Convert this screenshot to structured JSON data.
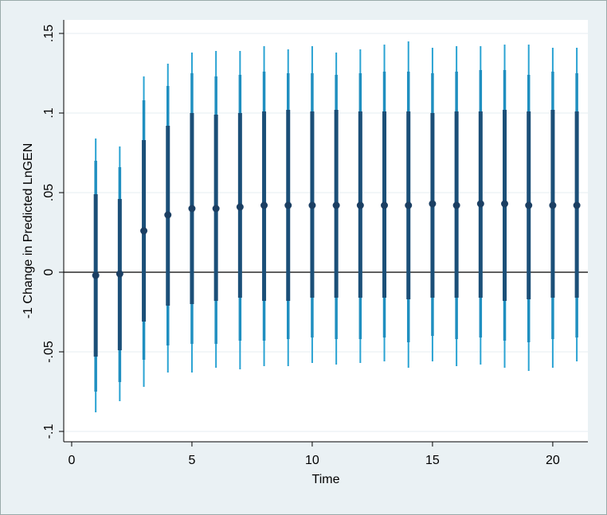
{
  "chart_data": {
    "type": "errorbar",
    "xlabel": "Time",
    "ylabel": "-1 Change in Predicted LnGEN",
    "x": [
      1,
      2,
      3,
      4,
      5,
      6,
      7,
      8,
      9,
      10,
      11,
      12,
      13,
      14,
      15,
      16,
      17,
      18,
      19,
      20,
      21
    ],
    "values": [
      -0.002,
      -0.001,
      0.026,
      0.036,
      0.04,
      0.04,
      0.041,
      0.042,
      0.042,
      0.042,
      0.042,
      0.042,
      0.042,
      0.042,
      0.043,
      0.042,
      0.043,
      0.043,
      0.042,
      0.042,
      0.042
    ],
    "color": "#1b3f63",
    "intervals": [
      {
        "color": "#2aa3d3",
        "lower": [
          -0.088,
          -0.081,
          -0.072,
          -0.063,
          -0.063,
          -0.06,
          -0.061,
          -0.059,
          -0.059,
          -0.057,
          -0.058,
          -0.057,
          -0.056,
          -0.06,
          -0.056,
          -0.059,
          -0.058,
          -0.06,
          -0.062,
          -0.06,
          -0.056
        ],
        "upper": [
          0.084,
          0.079,
          0.123,
          0.131,
          0.138,
          0.139,
          0.139,
          0.142,
          0.14,
          0.142,
          0.138,
          0.14,
          0.143,
          0.145,
          0.141,
          0.142,
          0.142,
          0.143,
          0.143,
          0.141,
          0.141
        ]
      },
      {
        "color": "#1f8fc0",
        "lower": [
          -0.075,
          -0.069,
          -0.055,
          -0.046,
          -0.045,
          -0.045,
          -0.043,
          -0.043,
          -0.042,
          -0.041,
          -0.042,
          -0.042,
          -0.041,
          -0.044,
          -0.04,
          -0.042,
          -0.041,
          -0.043,
          -0.044,
          -0.042,
          -0.041
        ],
        "upper": [
          0.07,
          0.066,
          0.108,
          0.117,
          0.125,
          0.123,
          0.124,
          0.126,
          0.125,
          0.125,
          0.124,
          0.125,
          0.126,
          0.126,
          0.125,
          0.126,
          0.127,
          0.127,
          0.124,
          0.126,
          0.125
        ]
      },
      {
        "color": "#1b4f78",
        "lower": [
          -0.053,
          -0.049,
          -0.031,
          -0.021,
          -0.02,
          -0.018,
          -0.016,
          -0.018,
          -0.018,
          -0.016,
          -0.016,
          -0.016,
          -0.016,
          -0.017,
          -0.016,
          -0.016,
          -0.016,
          -0.018,
          -0.017,
          -0.016,
          -0.016
        ],
        "upper": [
          0.049,
          0.046,
          0.083,
          0.092,
          0.1,
          0.099,
          0.1,
          0.101,
          0.102,
          0.101,
          0.102,
          0.101,
          0.101,
          0.101,
          0.1,
          0.101,
          0.101,
          0.102,
          0.101,
          0.102,
          0.101
        ]
      }
    ],
    "yline": 0,
    "xlim": [
      -0.33,
      21.46
    ],
    "ylim": [
      -0.1065,
      0.1585
    ],
    "xticks": [
      0,
      5,
      10,
      15,
      20
    ],
    "yticks": [
      {
        "value": -0.1,
        "label": "-.1"
      },
      {
        "value": -0.05,
        "label": "-.05"
      },
      0,
      {
        "value": 0.05,
        "label": ".05"
      },
      {
        "value": 0.1,
        "label": ".1"
      },
      {
        "value": 0.15,
        "label": ".15"
      }
    ],
    "grid": true
  }
}
